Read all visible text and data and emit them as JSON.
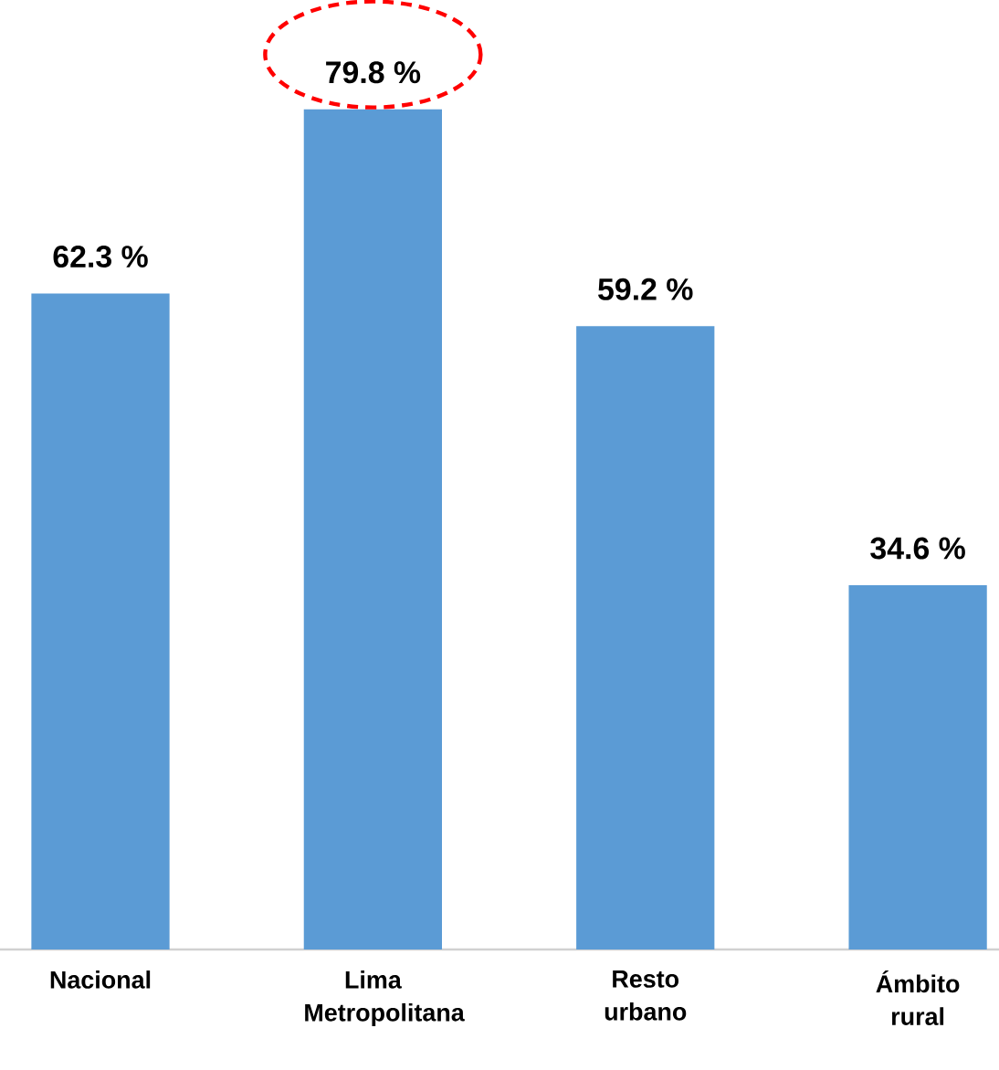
{
  "chart_data": {
    "type": "bar",
    "categories": [
      "Nacional",
      "Lima Metropolitana",
      "Resto urbano",
      "Ámbito rural"
    ],
    "values": [
      62.3,
      79.8,
      59.2,
      34.6
    ],
    "value_labels": [
      "62.3 %",
      "79.8 %",
      "59.2 %",
      "34.6 %"
    ],
    "color": "#5b9bd5"
  }
}
